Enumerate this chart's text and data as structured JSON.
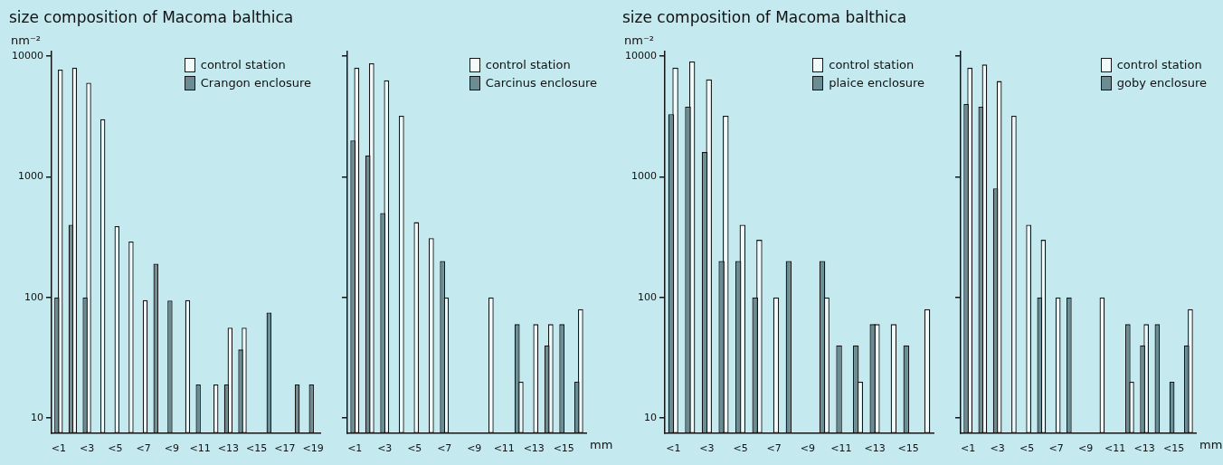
{
  "chart_data": [
    {
      "type": "bar",
      "title": "size composition of Macoma balthica",
      "ylabel": "nm⁻²",
      "categories": [
        "<1",
        null,
        "<3",
        null,
        "<5",
        null,
        "<7",
        null,
        "<9",
        null,
        "<11",
        null,
        "<13",
        null,
        "<15",
        null,
        "<17",
        null,
        "<19"
      ],
      "series": [
        {
          "name": "control station",
          "color": "#f2fbfc",
          "values": [
            7700,
            8000,
            6000,
            3000,
            390,
            290,
            95,
            null,
            null,
            95,
            null,
            19,
            56,
            56,
            null,
            null,
            null,
            null,
            null
          ]
        },
        {
          "name": "Crangon enclosure",
          "color": "#6b8c93",
          "values": [
            100,
            400,
            100,
            null,
            null,
            null,
            null,
            190,
            94,
            null,
            19,
            null,
            19,
            37,
            null,
            75,
            null,
            19,
            19
          ]
        }
      ],
      "log": "y",
      "ylim": [
        7.5,
        11000
      ],
      "yticks": [
        10,
        100,
        1000,
        10000
      ],
      "legend": "top right"
    },
    {
      "type": "bar",
      "xlabel": "mm",
      "categories": [
        "<1",
        null,
        "<3",
        null,
        "<5",
        null,
        "<7",
        null,
        "<9",
        null,
        "<11",
        null,
        "<13",
        null,
        "<15",
        null
      ],
      "series": [
        {
          "name": "control station",
          "color": "#f2fbfc",
          "values": [
            8000,
            8700,
            6300,
            3200,
            420,
            310,
            100,
            null,
            null,
            100,
            null,
            20,
            60,
            60,
            null,
            80
          ]
        },
        {
          "name": "Carcinus enclosure",
          "color": "#6b8c93",
          "values": [
            2000,
            1500,
            500,
            null,
            null,
            null,
            200,
            null,
            null,
            null,
            null,
            60,
            null,
            40,
            60,
            20
          ]
        }
      ],
      "log": "y",
      "ylim": [
        7.5,
        11000
      ],
      "yticks": [
        10,
        100,
        1000,
        10000
      ],
      "tick_labels": "x",
      "legend": "top right"
    },
    {
      "type": "bar",
      "title": "size composition of Macoma balthica",
      "ylabel": "nm⁻²",
      "categories": [
        "<1",
        null,
        "<3",
        null,
        "<5",
        null,
        "<7",
        null,
        "<9",
        null,
        "<11",
        null,
        "<13",
        null,
        "<15",
        null
      ],
      "series": [
        {
          "name": "control station",
          "color": "#f2fbfc",
          "values": [
            8000,
            9000,
            6400,
            3200,
            400,
            300,
            100,
            null,
            null,
            100,
            null,
            20,
            60,
            60,
            null,
            80
          ]
        },
        {
          "name": "plaice enclosure",
          "color": "#6b8c93",
          "values": [
            3300,
            3800,
            1600,
            200,
            200,
            100,
            null,
            200,
            null,
            200,
            40,
            40,
            60,
            null,
            40,
            null
          ]
        }
      ],
      "log": "y",
      "ylim": [
        7.5,
        11000
      ],
      "yticks": [
        10,
        100,
        1000,
        10000
      ],
      "legend": "top right"
    },
    {
      "type": "bar",
      "xlabel": "mm",
      "categories": [
        "<1",
        null,
        "<3",
        null,
        "<5",
        null,
        "<7",
        null,
        "<9",
        null,
        "<11",
        null,
        "<13",
        null,
        "<15",
        null
      ],
      "series": [
        {
          "name": "control station",
          "color": "#f2fbfc",
          "values": [
            8000,
            8500,
            6200,
            3200,
            400,
            300,
            100,
            null,
            null,
            100,
            null,
            20,
            60,
            null,
            null,
            80
          ]
        },
        {
          "name": "goby enclosure",
          "color": "#6b8c93",
          "values": [
            4000,
            3800,
            800,
            null,
            null,
            100,
            null,
            100,
            null,
            null,
            null,
            60,
            40,
            60,
            20,
            40
          ]
        }
      ],
      "log": "y",
      "ylim": [
        7.5,
        11000
      ],
      "yticks": [
        10,
        100,
        1000,
        10000
      ],
      "tick_labels": "x",
      "legend": "top right"
    }
  ]
}
